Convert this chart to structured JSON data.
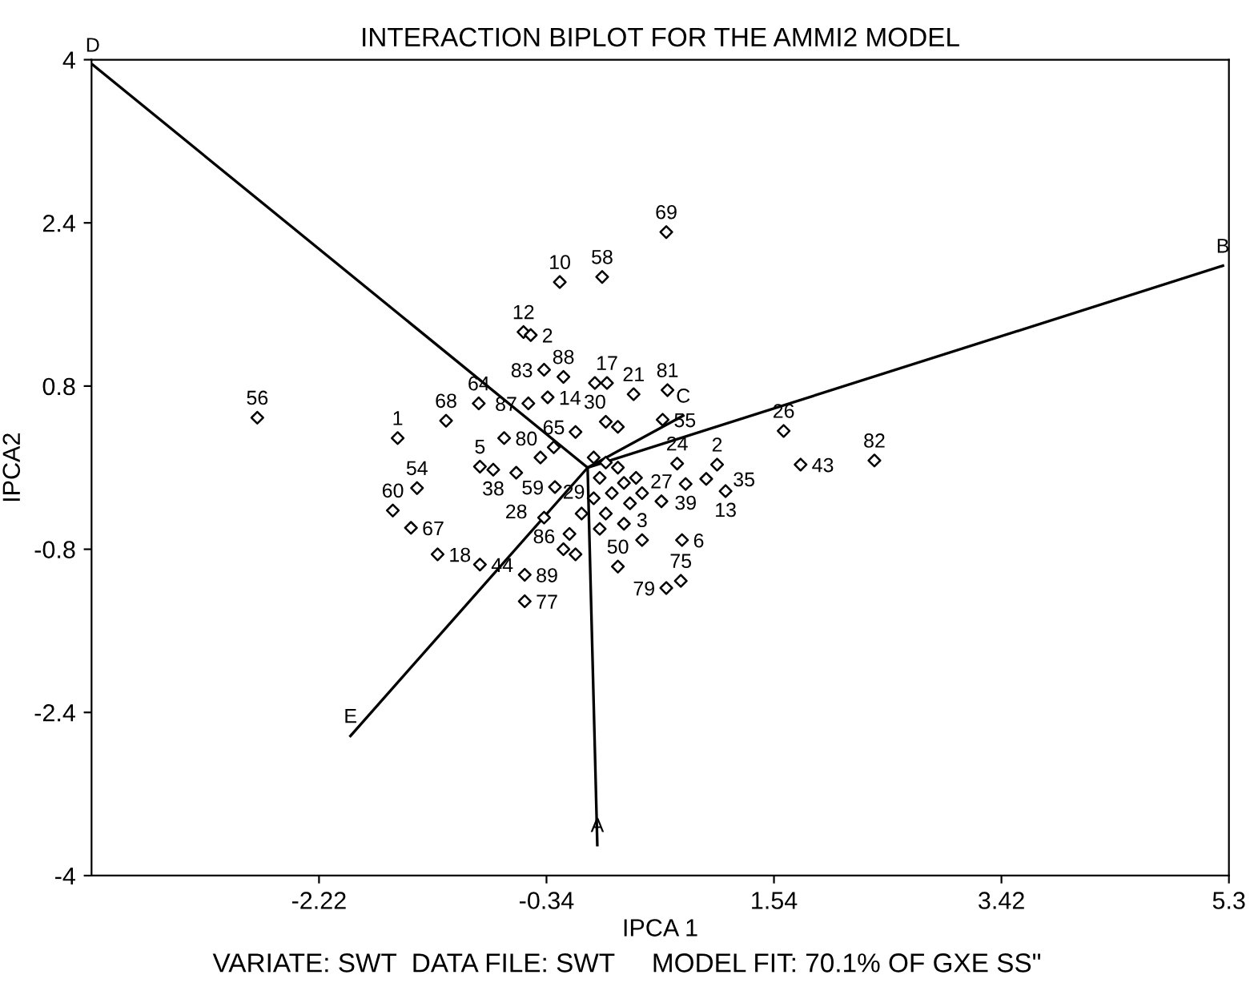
{
  "chart_data": {
    "type": "scatter",
    "title": "INTERACTION BIPLOT FOR THE AMMI2 MODEL",
    "xlabel": "IPCA 1",
    "ylabel": "IPCA2",
    "xlim": [
      -4.1,
      5.3
    ],
    "ylim": [
      -4,
      4
    ],
    "xticks": [
      -2.22,
      -0.34,
      1.54,
      3.42,
      5.3
    ],
    "yticks": [
      -4,
      -2.4,
      -0.8,
      0.8,
      2.4,
      4
    ],
    "grid": false,
    "legend": false,
    "marker": "diamond",
    "series": [
      {
        "color": "#000000",
        "x": [
          0.65,
          -0.23,
          0.12,
          -0.53,
          -0.47,
          -0.36,
          -0.2,
          0.16,
          0.06,
          0.38,
          0.66,
          -0.33,
          -0.49,
          -0.9,
          -1.17,
          -0.69,
          -1.57,
          -2.73,
          0.62,
          1.62,
          1.76,
          2.37,
          -0.28,
          -1.41,
          -0.89,
          -0.78,
          -0.59,
          -0.39,
          -0.27,
          -1.61,
          -1.46,
          -1.24,
          -0.89,
          -0.52,
          -0.52,
          -0.36,
          0.74,
          1.07,
          0.81,
          0.98,
          1.14,
          0.61,
          0.78,
          0.77,
          0.65,
          0.25,
          0.45,
          0.05,
          0.15,
          0.25,
          0.1,
          0.3,
          0.2,
          0.05,
          0.35,
          0.15,
          -0.05,
          0.3,
          0.1,
          -0.15,
          -0.2,
          -0.1,
          0.4,
          0.45,
          -0.1,
          0.15,
          0.25
        ],
        "values": [
          2.31,
          1.82,
          1.87,
          1.33,
          1.3,
          0.96,
          0.89,
          0.83,
          0.83,
          0.72,
          0.76,
          0.69,
          0.63,
          0.63,
          0.46,
          0.29,
          0.29,
          0.49,
          0.47,
          0.36,
          0.03,
          0.07,
          0.2,
          -0.2,
          0.01,
          -0.02,
          -0.05,
          0.1,
          -0.19,
          -0.42,
          -0.59,
          -0.85,
          -0.95,
          -1.05,
          -1.31,
          -0.49,
          0.04,
          0.03,
          -0.16,
          -0.11,
          -0.23,
          -0.33,
          -0.71,
          -1.11,
          -1.18,
          -0.97,
          -0.71,
          0.1,
          0.05,
          0.0,
          -0.1,
          -0.15,
          -0.25,
          -0.3,
          -0.35,
          -0.45,
          -0.45,
          -0.55,
          -0.6,
          -0.65,
          -0.8,
          -0.85,
          -0.1,
          -0.25,
          0.35,
          0.45,
          0.4
        ]
      },
      {
        "type": "line",
        "color": "#000000",
        "marker": "none",
        "x": [
          0,
          0.08
        ],
        "values": [
          0,
          -3.7
        ]
      },
      {
        "type": "line",
        "color": "#000000",
        "marker": "none",
        "x": [
          0,
          5.25
        ],
        "values": [
          0,
          1.98
        ]
      },
      {
        "type": "line",
        "color": "#000000",
        "marker": "none",
        "x": [
          -1.96,
          0,
          0.79
        ],
        "values": [
          -2.63,
          0,
          0.51
        ]
      },
      {
        "type": "line",
        "color": "#000000",
        "marker": "none",
        "x": [
          0,
          -4.09
        ],
        "values": [
          0,
          3.95
        ]
      }
    ],
    "annotations": [
      {
        "text": "69",
        "x": 0.65,
        "y": 2.31
      },
      {
        "text": "10",
        "x": -0.23,
        "y": 1.82
      },
      {
        "text": "58",
        "x": 0.12,
        "y": 1.87
      },
      {
        "text": "12",
        "x": -0.53,
        "y": 1.33
      },
      {
        "text": "2",
        "x": -0.47,
        "y": 1.3
      },
      {
        "text": "83",
        "x": -0.36,
        "y": 0.96
      },
      {
        "text": "88",
        "x": -0.2,
        "y": 0.89
      },
      {
        "text": "17",
        "x": 0.16,
        "y": 0.83
      },
      {
        "text": "30",
        "x": 0.06,
        "y": 0.83
      },
      {
        "text": "21",
        "x": 0.38,
        "y": 0.72
      },
      {
        "text": "81",
        "x": 0.66,
        "y": 0.76
      },
      {
        "text": "14",
        "x": -0.33,
        "y": 0.69
      },
      {
        "text": "87",
        "x": -0.49,
        "y": 0.63
      },
      {
        "text": "64",
        "x": -0.9,
        "y": 0.63
      },
      {
        "text": "68",
        "x": -1.17,
        "y": 0.46
      },
      {
        "text": "80",
        "x": -0.69,
        "y": 0.29
      },
      {
        "text": "1",
        "x": -1.57,
        "y": 0.29
      },
      {
        "text": "56",
        "x": -2.73,
        "y": 0.49
      },
      {
        "text": "55",
        "x": 0.62,
        "y": 0.47
      },
      {
        "text": "26",
        "x": 1.62,
        "y": 0.36
      },
      {
        "text": "43",
        "x": 1.76,
        "y": 0.03
      },
      {
        "text": "82",
        "x": 2.37,
        "y": 0.07
      },
      {
        "text": "65",
        "x": -0.28,
        "y": 0.2
      },
      {
        "text": "54",
        "x": -1.41,
        "y": -0.2
      },
      {
        "text": "5",
        "x": -0.89,
        "y": 0.01
      },
      {
        "text": "38",
        "x": -0.78,
        "y": -0.02
      },
      {
        "text": "28",
        "x": -0.59,
        "y": -0.05
      },
      {
        "text": "29",
        "x": -0.39,
        "y": 0.1
      },
      {
        "text": "59",
        "x": -0.27,
        "y": -0.19
      },
      {
        "text": "60",
        "x": -1.61,
        "y": -0.42
      },
      {
        "text": "67",
        "x": -1.46,
        "y": -0.59
      },
      {
        "text": "18",
        "x": -1.24,
        "y": -0.85
      },
      {
        "text": "44",
        "x": -0.89,
        "y": -0.95
      },
      {
        "text": "89",
        "x": -0.52,
        "y": -1.05
      },
      {
        "text": "77",
        "x": -0.52,
        "y": -1.31
      },
      {
        "text": "86",
        "x": -0.36,
        "y": -0.49
      },
      {
        "text": "24",
        "x": 0.74,
        "y": 0.04
      },
      {
        "text": "2",
        "x": 1.07,
        "y": 0.03
      },
      {
        "text": "39",
        "x": 0.81,
        "y": -0.16
      },
      {
        "text": "35",
        "x": 0.98,
        "y": -0.11
      },
      {
        "text": "13",
        "x": 1.14,
        "y": -0.23
      },
      {
        "text": "27",
        "x": 0.61,
        "y": -0.33
      },
      {
        "text": "6",
        "x": 0.78,
        "y": -0.71
      },
      {
        "text": "75",
        "x": 0.77,
        "y": -1.11
      },
      {
        "text": "79",
        "x": 0.65,
        "y": -1.18
      },
      {
        "text": "50",
        "x": 0.25,
        "y": -0.97
      },
      {
        "text": "3",
        "x": 0.45,
        "y": -0.71
      },
      {
        "text": "A",
        "x": 0.08,
        "y": -3.7
      },
      {
        "text": "B",
        "x": 5.25,
        "y": 1.98
      },
      {
        "text": "C",
        "x": 0.79,
        "y": 0.51
      },
      {
        "text": "D",
        "x": -4.09,
        "y": 3.95
      },
      {
        "text": "E",
        "x": -1.96,
        "y": -2.63
      },
      "VARIATE: SWT  DATA FILE: SWT     MODEL FIT: 70.1% OF GXE SS\""
    ]
  }
}
